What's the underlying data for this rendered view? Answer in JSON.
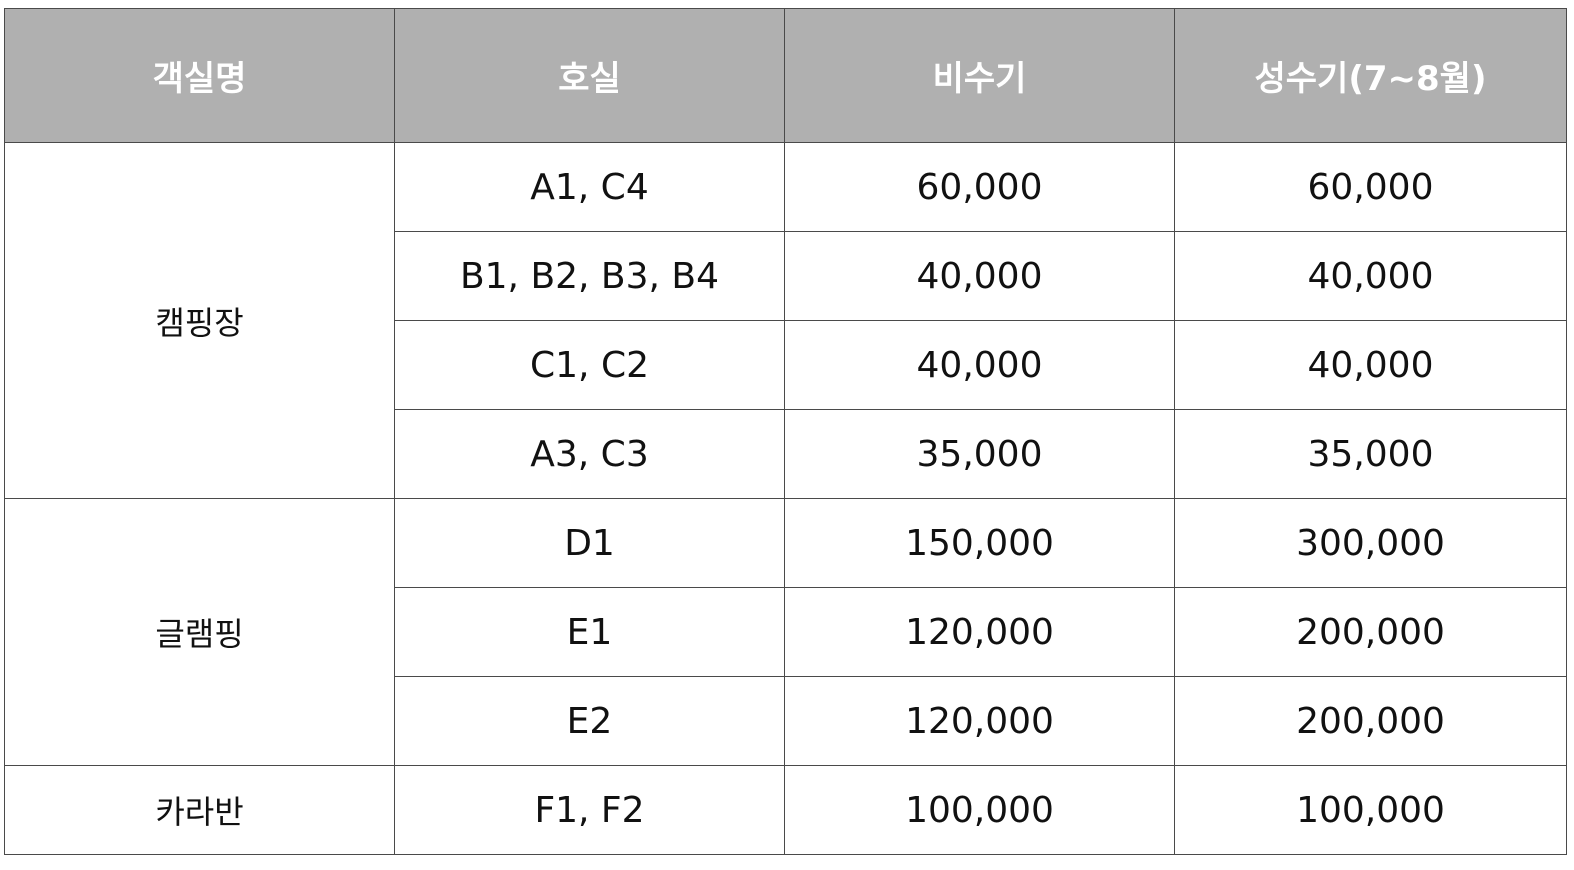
{
  "table": {
    "headers": [
      "객실명",
      "호실",
      "비수기",
      "성수기(7~8월)"
    ],
    "groups": [
      {
        "name": "캠핑장",
        "rows": [
          {
            "room": "A1, C4",
            "off_season": "60,000",
            "peak_season": "60,000"
          },
          {
            "room": "B1, B2, B3, B4",
            "off_season": "40,000",
            "peak_season": "40,000"
          },
          {
            "room": "C1, C2",
            "off_season": "40,000",
            "peak_season": "40,000"
          },
          {
            "room": "A3, C3",
            "off_season": "35,000",
            "peak_season": "35,000"
          }
        ]
      },
      {
        "name": "글램핑",
        "rows": [
          {
            "room": "D1",
            "off_season": "150,000",
            "peak_season": "300,000"
          },
          {
            "room": "E1",
            "off_season": "120,000",
            "peak_season": "200,000"
          },
          {
            "room": "E2",
            "off_season": "120,000",
            "peak_season": "200,000"
          }
        ]
      },
      {
        "name": "카라반",
        "rows": [
          {
            "room": "F1, F2",
            "off_season": "100,000",
            "peak_season": "100,000"
          }
        ]
      }
    ]
  }
}
